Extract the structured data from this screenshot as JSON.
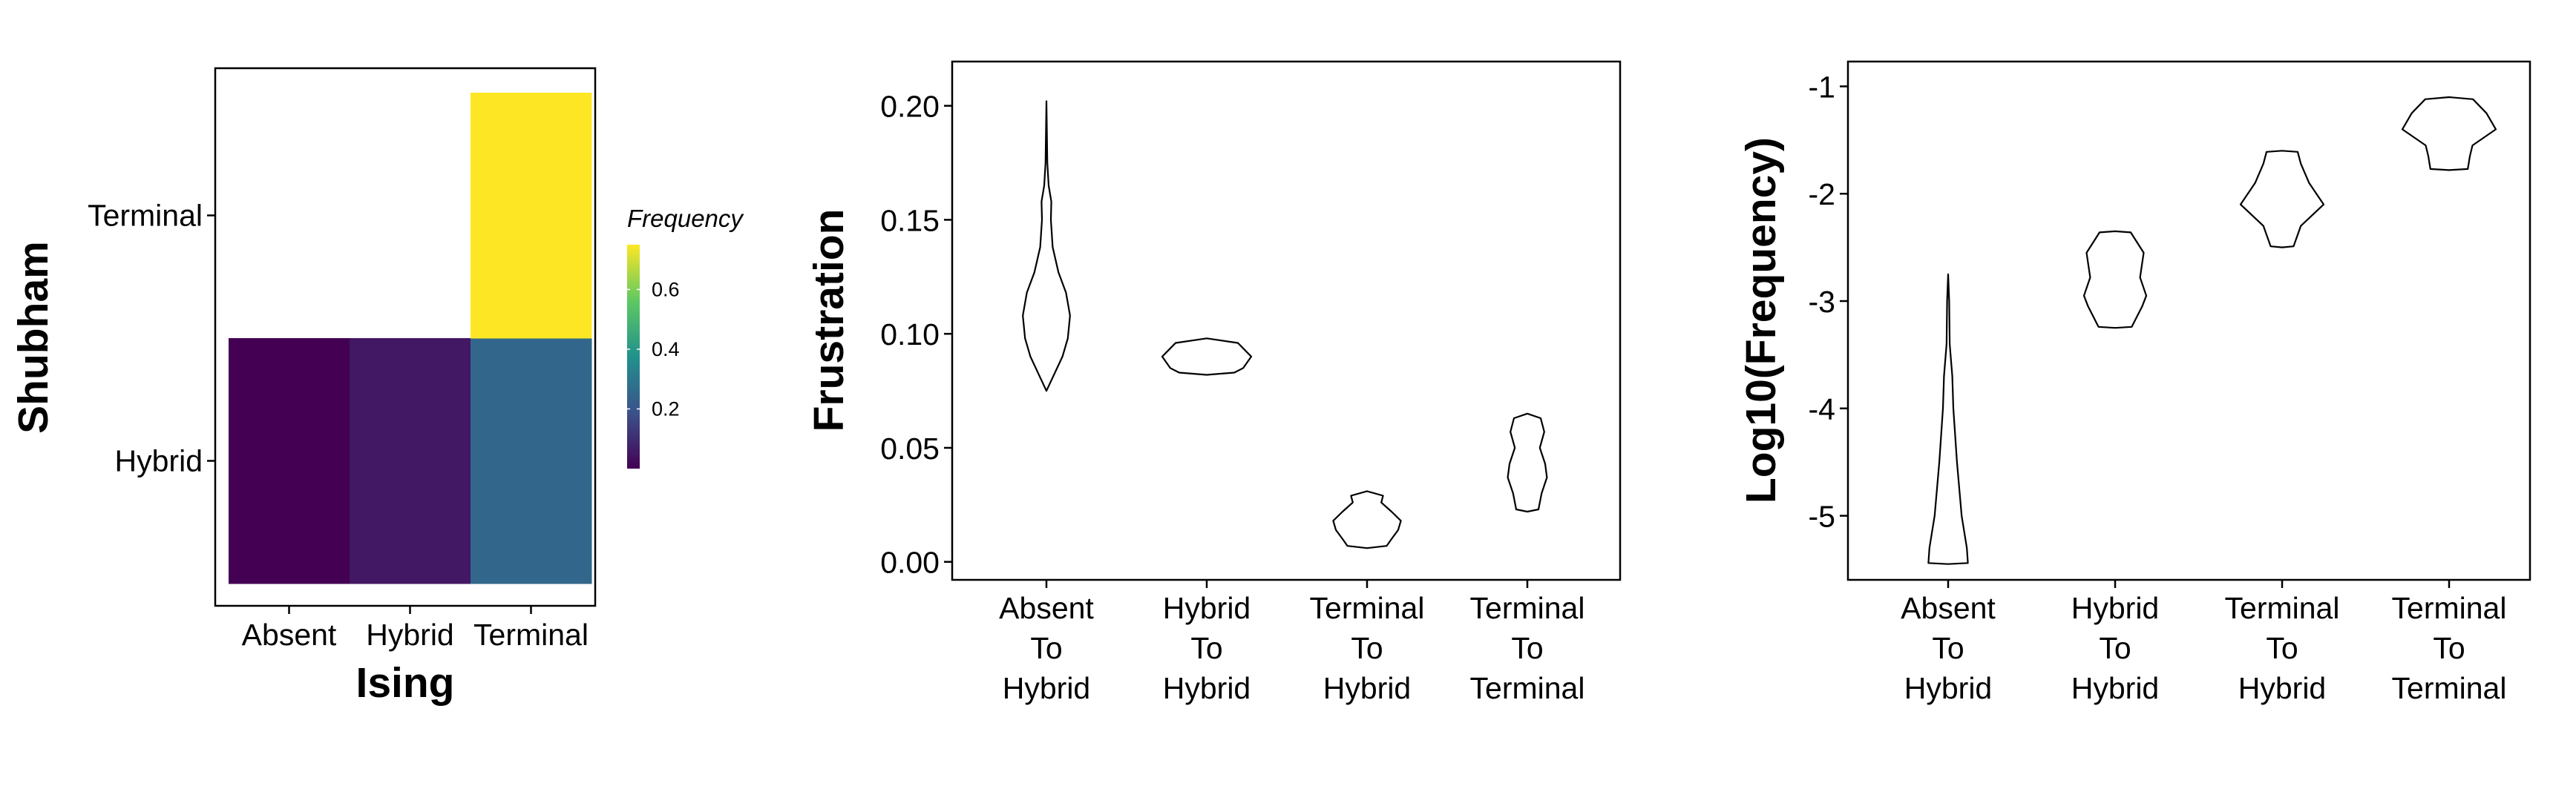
{
  "chart_data": [
    {
      "type": "heatmap",
      "xlabel": "Ising",
      "ylabel": "Shubham",
      "x_categories": [
        "Absent",
        "Hybrid",
        "Terminal"
      ],
      "y_categories": [
        "Hybrid",
        "Terminal"
      ],
      "cells": [
        {
          "x": "Absent",
          "y": "Hybrid",
          "value": 0.0
        },
        {
          "x": "Hybrid",
          "y": "Hybrid",
          "value": 0.05
        },
        {
          "x": "Terminal",
          "y": "Hybrid",
          "value": 0.25
        },
        {
          "x": "Terminal",
          "y": "Terminal",
          "value": 0.75
        }
      ],
      "legend": {
        "title": "Frequency",
        "ticks": [
          "0.2",
          "0.4",
          "0.6"
        ],
        "range": [
          0.0,
          0.75
        ],
        "colors": [
          "#440154",
          "#3b528b",
          "#21918c",
          "#5ec962",
          "#fde725"
        ]
      }
    },
    {
      "type": "violin",
      "xlabel": "",
      "ylabel": "Frustration",
      "categories": [
        "Absent\nTo\nHybrid",
        "Hybrid\nTo\nHybrid",
        "Terminal\nTo\nHybrid",
        "Terminal\nTo\nTerminal"
      ],
      "ylim": [
        -0.004,
        0.209
      ],
      "y_ticks": [
        "0.00",
        "0.05",
        "0.10",
        "0.15",
        "0.20"
      ],
      "series": [
        {
          "y_min": 0.075,
          "y_max": 0.202,
          "profile": [
            [
              0.075,
              0.0
            ],
            [
              0.08,
              0.12
            ],
            [
              0.09,
              0.36
            ],
            [
              0.098,
              0.48
            ],
            [
              0.108,
              0.53
            ],
            [
              0.118,
              0.44
            ],
            [
              0.127,
              0.27
            ],
            [
              0.138,
              0.14
            ],
            [
              0.15,
              0.1
            ],
            [
              0.158,
              0.11
            ],
            [
              0.165,
              0.05
            ],
            [
              0.175,
              0.02
            ],
            [
              0.202,
              0.0
            ]
          ]
        },
        {
          "y_min": 0.082,
          "y_max": 0.098,
          "profile": [
            [
              0.082,
              0.0
            ],
            [
              0.083,
              0.62
            ],
            [
              0.085,
              0.82
            ],
            [
              0.09,
              1.0
            ],
            [
              0.093,
              0.85
            ],
            [
              0.096,
              0.7
            ],
            [
              0.098,
              0.0
            ]
          ]
        },
        {
          "y_min": 0.006,
          "y_max": 0.031,
          "profile": [
            [
              0.006,
              0.0
            ],
            [
              0.007,
              0.44
            ],
            [
              0.01,
              0.55
            ],
            [
              0.014,
              0.7
            ],
            [
              0.018,
              0.76
            ],
            [
              0.022,
              0.55
            ],
            [
              0.026,
              0.32
            ],
            [
              0.029,
              0.36
            ],
            [
              0.031,
              0.0
            ]
          ]
        },
        {
          "y_min": 0.022,
          "y_max": 0.065,
          "profile": [
            [
              0.022,
              0.0
            ],
            [
              0.023,
              0.25
            ],
            [
              0.03,
              0.32
            ],
            [
              0.037,
              0.44
            ],
            [
              0.043,
              0.4
            ],
            [
              0.05,
              0.28
            ],
            [
              0.057,
              0.38
            ],
            [
              0.063,
              0.3
            ],
            [
              0.065,
              0.0
            ]
          ]
        }
      ]
    },
    {
      "type": "violin",
      "xlabel": "",
      "ylabel": "Log10(Frequency)",
      "categories": [
        "Absent\nTo\nHybrid",
        "Hybrid\nTo\nHybrid",
        "Terminal\nTo\nHybrid",
        "Terminal\nTo\nTerminal"
      ],
      "ylim": [
        -5.68,
        -0.9
      ],
      "y_ticks": [
        "-5",
        "-4",
        "-3",
        "-2",
        "-1"
      ],
      "series": [
        {
          "y_min": -5.45,
          "y_max": -2.75,
          "profile": [
            [
              -5.45,
              0.0
            ],
            [
              -5.44,
              0.38
            ],
            [
              -5.3,
              0.36
            ],
            [
              -5.0,
              0.26
            ],
            [
              -4.5,
              0.17
            ],
            [
              -4.0,
              0.1
            ],
            [
              -3.7,
              0.08
            ],
            [
              -3.4,
              0.03
            ],
            [
              -3.0,
              0.02
            ],
            [
              -2.75,
              0.0
            ]
          ]
        },
        {
          "y_min": -3.25,
          "y_max": -2.35,
          "profile": [
            [
              -3.25,
              0.0
            ],
            [
              -3.24,
              0.32
            ],
            [
              -3.05,
              0.52
            ],
            [
              -2.95,
              0.6
            ],
            [
              -2.78,
              0.48
            ],
            [
              -2.55,
              0.55
            ],
            [
              -2.36,
              0.3
            ],
            [
              -2.35,
              0.0
            ]
          ]
        },
        {
          "y_min": -2.5,
          "y_max": -1.6,
          "profile": [
            [
              -2.5,
              0.0
            ],
            [
              -2.49,
              0.22
            ],
            [
              -2.3,
              0.36
            ],
            [
              -2.1,
              0.8
            ],
            [
              -1.9,
              0.52
            ],
            [
              -1.72,
              0.36
            ],
            [
              -1.61,
              0.3
            ],
            [
              -1.6,
              0.0
            ]
          ]
        },
        {
          "y_min": -1.78,
          "y_max": -1.1,
          "profile": [
            [
              -1.78,
              0.0
            ],
            [
              -1.77,
              0.36
            ],
            [
              -1.65,
              0.4
            ],
            [
              -1.55,
              0.45
            ],
            [
              -1.4,
              0.9
            ],
            [
              -1.25,
              0.72
            ],
            [
              -1.12,
              0.46
            ],
            [
              -1.1,
              0.0
            ]
          ]
        }
      ]
    }
  ]
}
